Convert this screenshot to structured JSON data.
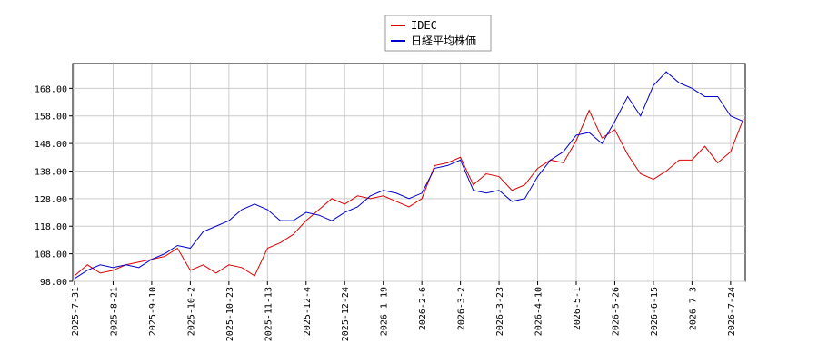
{
  "chart_data": {
    "type": "line",
    "x": [
      "2025-7-31",
      "2025-8-7",
      "2025-8-14",
      "2025-8-21",
      "2025-8-28",
      "2025-9-3",
      "2025-9-10",
      "2025-9-18",
      "2025-9-25",
      "2025-10-2",
      "2025-10-9",
      "2025-10-16",
      "2025-10-23",
      "2025-10-30",
      "2025-11-6",
      "2025-11-13",
      "2025-11-20",
      "2025-11-27",
      "2025-12-4",
      "2025-12-11",
      "2025-12-18",
      "2025-12-24",
      "2026-1-6",
      "2026-1-13",
      "2026-1-19",
      "2026-1-26",
      "2026-2-2",
      "2026-2-6",
      "2026-2-13",
      "2026-2-20",
      "2026-3-2",
      "2026-3-9",
      "2026-3-16",
      "2026-3-23",
      "2026-3-30",
      "2026-4-3",
      "2026-4-10",
      "2026-4-17",
      "2026-4-24",
      "2026-5-1",
      "2026-5-13",
      "2026-5-19",
      "2026-5-26",
      "2026-6-2",
      "2026-6-9",
      "2026-6-15",
      "2026-6-22",
      "2026-6-26",
      "2026-7-3",
      "2026-7-10",
      "2026-7-17",
      "2026-7-24",
      "2026-7-31"
    ],
    "series": [
      {
        "name": "IDEC",
        "color": "#dd0000",
        "values": [
          100,
          104,
          101,
          102,
          104,
          105,
          106,
          107,
          110,
          102,
          104,
          101,
          104,
          103,
          100,
          110,
          112,
          115,
          120,
          124,
          128,
          126,
          129,
          128,
          129,
          127,
          125,
          128,
          140,
          141,
          143,
          133,
          137,
          136,
          131,
          133,
          139,
          142,
          141,
          149,
          160,
          150,
          153,
          144,
          137,
          135,
          138,
          142,
          142,
          147,
          141,
          145,
          157
        ]
      },
      {
        "name": "日経平均株価",
        "color": "#0000cc",
        "values": [
          99,
          102,
          104,
          103,
          104,
          103,
          106,
          108,
          111,
          110,
          116,
          118,
          120,
          124,
          126,
          124,
          120,
          120,
          123,
          122,
          120,
          123,
          125,
          129,
          131,
          130,
          128,
          130,
          139,
          140,
          142,
          131,
          130,
          131,
          127,
          128,
          136,
          142,
          145,
          151,
          152,
          148,
          156,
          165,
          158,
          169,
          174,
          170,
          168,
          165,
          165,
          158,
          156
        ]
      }
    ],
    "xticks": [
      "2025-7-31",
      "2025-8-21",
      "2025-9-10",
      "2025-10-2",
      "2025-10-23",
      "2025-11-13",
      "2025-12-4",
      "2025-12-24",
      "2026-1-19",
      "2026-2-6",
      "2026-3-2",
      "2026-3-23",
      "2026-4-10",
      "2026-5-1",
      "2026-5-26",
      "2026-6-15",
      "2026-7-3",
      "2026-7-24"
    ],
    "ylim": [
      98,
      177
    ],
    "yticks": [
      {
        "value": 98,
        "label": "98.00"
      },
      {
        "value": 108,
        "label": "108.00"
      },
      {
        "value": 118,
        "label": "118.00"
      },
      {
        "value": 128,
        "label": "128.00"
      },
      {
        "value": 138,
        "label": "138.00"
      },
      {
        "value": 148,
        "label": "148.00"
      },
      {
        "value": 158,
        "label": "158.00"
      },
      {
        "value": 168,
        "label": "168.00"
      }
    ],
    "grid": true
  }
}
